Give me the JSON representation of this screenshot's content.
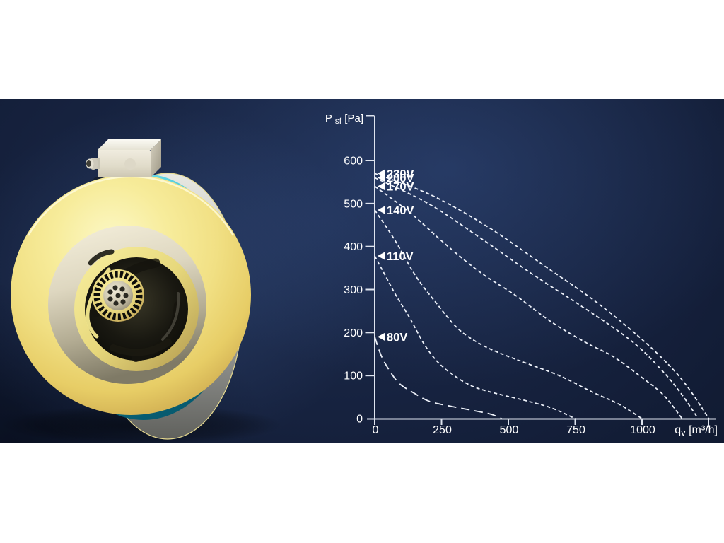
{
  "banner": {
    "background_colors": {
      "glow": "#486cb2",
      "mid": "#141f3a",
      "edge": "#0c1527"
    }
  },
  "fan_image": {
    "kind": "3d-product-render",
    "colors": {
      "body_yellow": "#f1e084",
      "body_highlight": "#fcf8c6",
      "body_shadow": "#c9a44b",
      "rim_teal": "#2fb5cd",
      "back_gray": "#b5b5af",
      "inner_cone": "#ded7c0",
      "cavity": "#0d0d08",
      "terminal_box": "#e9e5d6"
    }
  },
  "chart": {
    "text_color": "#ffffff",
    "axis_color": "#dde3ee",
    "curve_color": "#eef2fa",
    "y_axis": {
      "title": {
        "main": "P ",
        "sub": "sf",
        "suffix": " [Pa]"
      },
      "tick_labels": [
        "0",
        "100",
        "200",
        "300",
        "400",
        "500",
        "600"
      ]
    },
    "x_axis": {
      "title": {
        "main": "q",
        "sub": "v",
        "suffix": " [m³/h]"
      },
      "tick_labels": [
        "0",
        "250",
        "500",
        "750",
        "1000"
      ]
    }
  },
  "chart_data": {
    "type": "line",
    "xlabel": "qv [m³/h]",
    "ylabel": "P sf [Pa]",
    "xlim": [
      0,
      1270
    ],
    "ylim": [
      0,
      705
    ],
    "x_ticks": [
      0,
      250,
      500,
      750,
      1000
    ],
    "y_ticks": [
      0,
      100,
      200,
      300,
      400,
      500,
      600
    ],
    "grid": false,
    "legend_position": "arrow-labels-at-pressure-axis",
    "series": [
      {
        "name": "230V",
        "dash": "short",
        "points": [
          [
            0,
            570
          ],
          [
            210,
            520
          ],
          [
            425,
            445
          ],
          [
            635,
            355
          ],
          [
            820,
            275
          ],
          [
            980,
            195
          ],
          [
            1100,
            125
          ],
          [
            1175,
            70
          ],
          [
            1250,
            0
          ]
        ]
      },
      {
        "name": "200V",
        "dash": "short",
        "points": [
          [
            0,
            560
          ],
          [
            200,
            500
          ],
          [
            395,
            420
          ],
          [
            580,
            340
          ],
          [
            740,
            275
          ],
          [
            885,
            215
          ],
          [
            990,
            165
          ],
          [
            1085,
            105
          ],
          [
            1150,
            55
          ],
          [
            1210,
            0
          ]
        ]
      },
      {
        "name": "170V",
        "dash": "short",
        "points": [
          [
            0,
            540
          ],
          [
            130,
            480
          ],
          [
            265,
            405
          ],
          [
            395,
            340
          ],
          [
            530,
            285
          ],
          [
            660,
            225
          ],
          [
            795,
            175
          ],
          [
            890,
            145
          ],
          [
            990,
            100
          ],
          [
            1080,
            55
          ],
          [
            1150,
            0
          ]
        ]
      },
      {
        "name": "140V",
        "dash": "short",
        "points": [
          [
            0,
            485
          ],
          [
            75,
            415
          ],
          [
            155,
            330
          ],
          [
            235,
            265
          ],
          [
            310,
            210
          ],
          [
            390,
            175
          ],
          [
            465,
            153
          ],
          [
            570,
            128
          ],
          [
            690,
            100
          ],
          [
            820,
            60
          ],
          [
            915,
            33
          ],
          [
            1000,
            0
          ]
        ]
      },
      {
        "name": "110V",
        "dash": "short",
        "points": [
          [
            0,
            378
          ],
          [
            40,
            332
          ],
          [
            80,
            286
          ],
          [
            132,
            233
          ],
          [
            185,
            173
          ],
          [
            238,
            130
          ],
          [
            304,
            97
          ],
          [
            370,
            74
          ],
          [
            450,
            59
          ],
          [
            556,
            43
          ],
          [
            660,
            25
          ],
          [
            750,
            0
          ]
        ]
      },
      {
        "name": "80V",
        "dash": "long",
        "points": [
          [
            0,
            190
          ],
          [
            25,
            145
          ],
          [
            60,
            107
          ],
          [
            95,
            80
          ],
          [
            145,
            60
          ],
          [
            205,
            40
          ],
          [
            290,
            28
          ],
          [
            375,
            18
          ],
          [
            435,
            10
          ],
          [
            475,
            0
          ]
        ]
      }
    ]
  }
}
